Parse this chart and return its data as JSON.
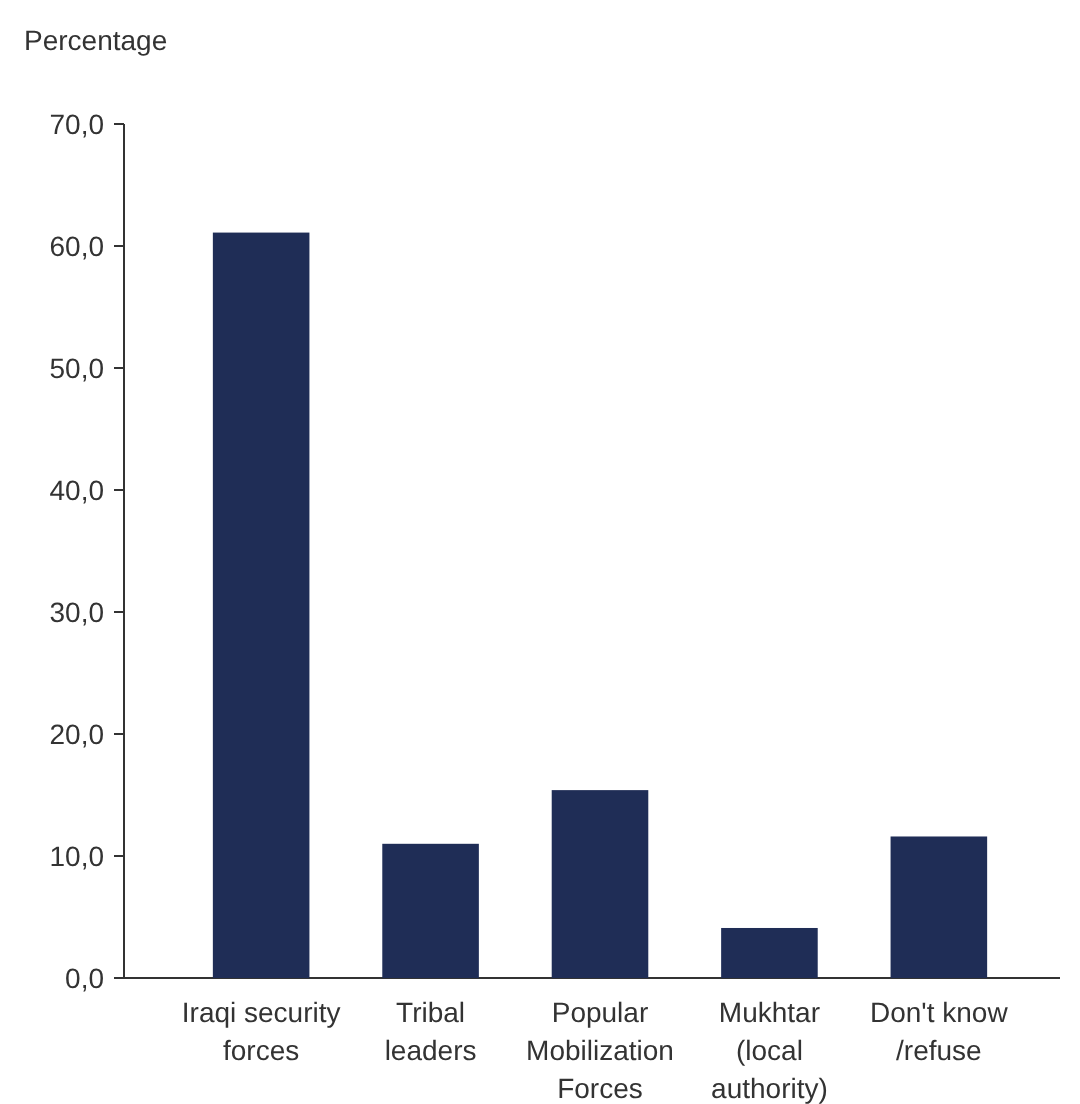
{
  "chart_data": {
    "type": "bar",
    "ylabel": "Percentage",
    "categories": [
      "Iraqi security\nforces",
      "Tribal\nleaders",
      "Popular\nMobilization\nForces",
      "Mukhtar\n(local\nauthority)",
      "Don't know\n/refuse"
    ],
    "values": [
      61.1,
      11.0,
      15.4,
      4.1,
      11.6
    ],
    "color": "#1f2d56",
    "ylim": [
      0,
      70
    ],
    "yticks": [
      {
        "value": 0,
        "label": "0,0"
      },
      {
        "value": 10,
        "label": "10,0"
      },
      {
        "value": 20,
        "label": "20,0"
      },
      {
        "value": 30,
        "label": "30,0"
      },
      {
        "value": 40,
        "label": "40,0"
      },
      {
        "value": 50,
        "label": "50,0"
      },
      {
        "value": 60,
        "label": "60,0"
      },
      {
        "value": 70,
        "label": "70,0"
      }
    ],
    "grid": false
  }
}
